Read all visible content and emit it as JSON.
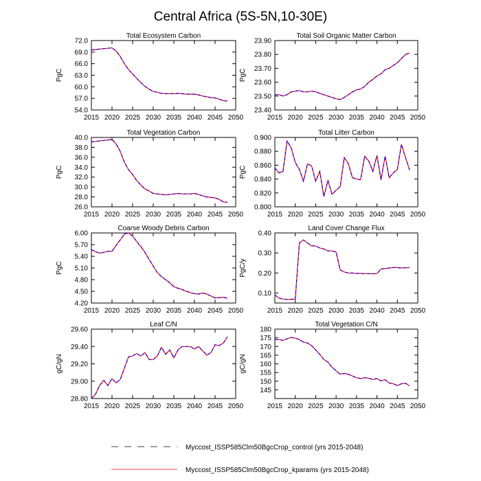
{
  "title": "Central Africa (5S-5N,10-30E)",
  "colors": {
    "control": "#0000ff",
    "kparams": "#ff0000"
  },
  "legend": [
    {
      "label": "Myccost_ISSP585Clm50BgcCrop_control (yrs 2015-2048)",
      "style": "dashed"
    },
    {
      "label": "Myccost_ISSP585Clm50BgcCrop_kparams (yrs 2015-2048)",
      "style": "solid"
    }
  ],
  "chart_data": [
    {
      "type": "line",
      "title": "Total Ecosystem Carbon",
      "ylabel": "PgC",
      "xlim": [
        2015,
        2050
      ],
      "xticks": [
        "2015",
        "2020",
        "2025",
        "2030",
        "2035",
        "2040",
        "2045",
        "2050"
      ],
      "ylim": [
        54,
        72
      ],
      "yticks": [
        "54.0",
        "57.0",
        "60.0",
        "63.0",
        "66.0",
        "69.0",
        "72.0"
      ],
      "values": [
        69.6,
        69.6,
        69.8,
        69.9,
        70.0,
        70.1,
        69.3,
        67.9,
        66.0,
        64.5,
        63.3,
        62.2,
        61.1,
        60.1,
        59.4,
        58.8,
        58.6,
        58.3,
        58.2,
        58.2,
        58.2,
        58.3,
        58.2,
        58.1,
        58.1,
        58.1,
        57.9,
        57.6,
        57.4,
        57.2,
        57.1,
        56.8,
        56.4,
        56.3
      ]
    },
    {
      "type": "line",
      "title": "Total Soil Organic Matter Carbon",
      "ylabel": "PgC",
      "xlim": [
        2015,
        2050
      ],
      "xticks": [
        "2015",
        "2020",
        "2025",
        "2030",
        "2035",
        "2040",
        "2045",
        "2050"
      ],
      "ylim": [
        23.4,
        23.9
      ],
      "yticks": [
        "23.40",
        "23.50",
        "23.60",
        "23.70",
        "23.80",
        "23.90"
      ],
      "values": [
        23.51,
        23.51,
        23.5,
        23.51,
        23.53,
        23.535,
        23.54,
        23.53,
        23.53,
        23.535,
        23.53,
        23.52,
        23.51,
        23.5,
        23.49,
        23.48,
        23.475,
        23.49,
        23.51,
        23.53,
        23.545,
        23.55,
        23.57,
        23.6,
        23.62,
        23.645,
        23.66,
        23.69,
        23.7,
        23.72,
        23.74,
        23.77,
        23.8,
        23.81
      ]
    },
    {
      "type": "line",
      "title": "Total Vegetation Carbon",
      "ylabel": "PgC",
      "xlim": [
        2015,
        2050
      ],
      "xticks": [
        "2015",
        "2020",
        "2025",
        "2030",
        "2035",
        "2040",
        "2045",
        "2050"
      ],
      "ylim": [
        26,
        40
      ],
      "yticks": [
        "26.0",
        "28.0",
        "30.0",
        "32.0",
        "34.0",
        "36.0",
        "38.0",
        "40.0"
      ],
      "values": [
        39.1,
        39.2,
        39.3,
        39.4,
        39.5,
        39.6,
        38.7,
        37.2,
        35.0,
        33.5,
        32.5,
        31.3,
        30.4,
        29.6,
        29.2,
        28.7,
        28.6,
        28.5,
        28.4,
        28.5,
        28.6,
        28.7,
        28.6,
        28.6,
        28.6,
        28.7,
        28.5,
        28.2,
        28.0,
        27.9,
        27.8,
        27.5,
        27.0,
        26.9
      ]
    },
    {
      "type": "line",
      "title": "Total Litter Carbon",
      "ylabel": "PgC",
      "xlim": [
        2015,
        2050
      ],
      "xticks": [
        "2015",
        "2020",
        "2025",
        "2030",
        "2035",
        "2040",
        "2045",
        "2050"
      ],
      "ylim": [
        0.8,
        0.9
      ],
      "yticks": [
        "0.800",
        "0.820",
        "0.840",
        "0.860",
        "0.880",
        "0.900"
      ],
      "values": [
        0.856,
        0.849,
        0.851,
        0.895,
        0.885,
        0.864,
        0.854,
        0.837,
        0.862,
        0.859,
        0.837,
        0.851,
        0.815,
        0.838,
        0.818,
        0.824,
        0.829,
        0.871,
        0.862,
        0.842,
        0.84,
        0.839,
        0.873,
        0.866,
        0.851,
        0.874,
        0.839,
        0.873,
        0.842,
        0.849,
        0.854,
        0.89,
        0.871,
        0.853
      ]
    },
    {
      "type": "line",
      "title": "Coarse Woody Debris Carbon",
      "ylabel": "PgC",
      "xlim": [
        2015,
        2050
      ],
      "xticks": [
        "2015",
        "2020",
        "2025",
        "2030",
        "2035",
        "2040",
        "2045",
        "2050"
      ],
      "ylim": [
        4.2,
        6.0
      ],
      "yticks": [
        "4.20",
        "4.50",
        "4.80",
        "5.10",
        "5.40",
        "5.70",
        "6.00"
      ],
      "values": [
        5.57,
        5.52,
        5.48,
        5.5,
        5.53,
        5.53,
        5.68,
        5.82,
        5.97,
        6.0,
        5.92,
        5.78,
        5.65,
        5.5,
        5.32,
        5.15,
        4.98,
        4.88,
        4.8,
        4.72,
        4.62,
        4.58,
        4.55,
        4.5,
        4.47,
        4.44,
        4.43,
        4.46,
        4.43,
        4.38,
        4.33,
        4.34,
        4.35,
        4.32
      ]
    },
    {
      "type": "line",
      "title": "Land Cover Change Flux",
      "ylabel": "PgC/y",
      "xlim": [
        2015,
        2050
      ],
      "xticks": [
        "2015",
        "2020",
        "2025",
        "2030",
        "2035",
        "2040",
        "2045",
        "2050"
      ],
      "ylim": [
        0.05,
        0.4
      ],
      "yticks": [
        "0.10",
        "0.20",
        "0.30",
        "0.40"
      ],
      "values": [
        0.09,
        0.075,
        0.07,
        0.068,
        0.069,
        0.069,
        0.35,
        0.365,
        0.35,
        0.335,
        0.335,
        0.325,
        0.32,
        0.31,
        0.31,
        0.305,
        0.215,
        0.205,
        0.2,
        0.2,
        0.198,
        0.198,
        0.197,
        0.197,
        0.196,
        0.197,
        0.22,
        0.222,
        0.225,
        0.227,
        0.227,
        0.225,
        0.226,
        0.227
      ]
    },
    {
      "type": "line",
      "title": "Leaf C/N",
      "ylabel": "gC/gN",
      "xlim": [
        2015,
        2050
      ],
      "xticks": [
        "2015",
        "2020",
        "2025",
        "2030",
        "2035",
        "2040",
        "2045",
        "2050"
      ],
      "ylim": [
        28.8,
        29.6
      ],
      "yticks": [
        "28.80",
        "29.00",
        "29.20",
        "29.40",
        "29.60"
      ],
      "values": [
        28.8,
        28.85,
        28.95,
        29.01,
        28.95,
        29.03,
        28.98,
        29.02,
        29.15,
        29.28,
        29.29,
        29.32,
        29.29,
        29.33,
        29.25,
        29.25,
        29.29,
        29.39,
        29.31,
        29.36,
        29.27,
        29.36,
        29.4,
        29.4,
        29.4,
        29.37,
        29.4,
        29.35,
        29.3,
        29.33,
        29.42,
        29.41,
        29.44,
        29.51
      ]
    },
    {
      "type": "line",
      "title": "Total Vegetation C/N",
      "ylabel": "gC/gN",
      "xlim": [
        2015,
        2050
      ],
      "xticks": [
        "2015",
        "2020",
        "2025",
        "2030",
        "2035",
        "2040",
        "2045",
        "2050"
      ],
      "ylim": [
        140,
        180
      ],
      "yticks": [
        "145",
        "150",
        "155",
        "160",
        "165",
        "170",
        "175",
        "180"
      ],
      "values": [
        174,
        174,
        173.5,
        174.5,
        175.2,
        174.8,
        174,
        172.5,
        172,
        170.5,
        168,
        165.5,
        162.5,
        161,
        158,
        156,
        154,
        154.5,
        154,
        153,
        152,
        151.5,
        152,
        151.7,
        151,
        151.5,
        150.2,
        150.8,
        149,
        148.5,
        147.5,
        148.5,
        148.8,
        147.3
      ]
    }
  ]
}
